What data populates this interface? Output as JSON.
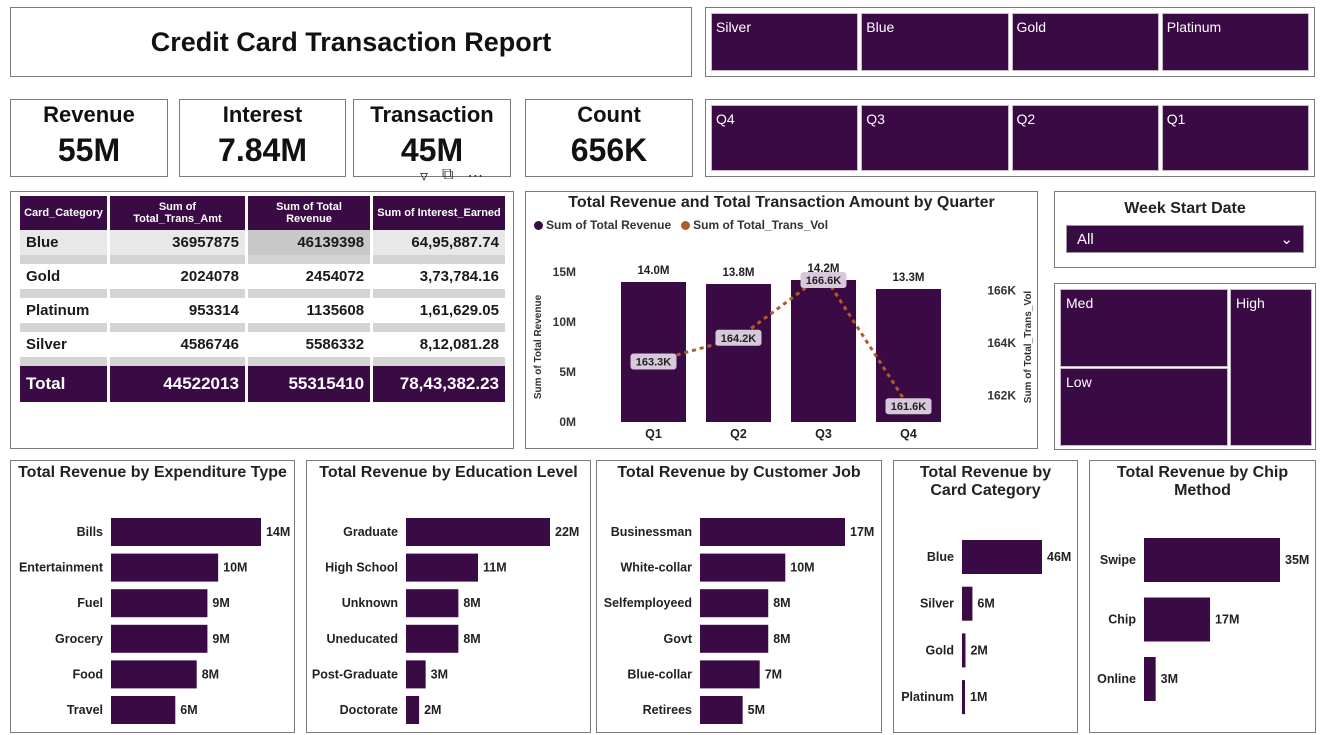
{
  "header": {
    "title": "Credit Card Transaction Report"
  },
  "card_slicer": [
    "Silver",
    "Blue",
    "Gold",
    "Platinum"
  ],
  "quarter_slicer": [
    "Q4",
    "Q3",
    "Q2",
    "Q1"
  ],
  "kpis": [
    {
      "label": "Revenue",
      "value": "55M"
    },
    {
      "label": "Interest",
      "value": "7.84M"
    },
    {
      "label": "Transaction",
      "value": "45M"
    },
    {
      "label": "Count",
      "value": "656K"
    }
  ],
  "matrix": {
    "headers": [
      "Card_Category",
      "Sum of Total_Trans_Amt",
      "Sum of Total Revenue",
      "Sum of Interest_Earned"
    ],
    "rows": [
      [
        "Blue",
        "36957875",
        "46139398",
        "64,95,887.74"
      ],
      [
        "Gold",
        "2024078",
        "2454072",
        "3,73,784.16"
      ],
      [
        "Platinum",
        "953314",
        "1135608",
        "1,61,629.05"
      ],
      [
        "Silver",
        "4586746",
        "5586332",
        "8,12,081.28"
      ]
    ],
    "total": [
      "Total",
      "44522013",
      "55315410",
      "78,43,382.23"
    ]
  },
  "week": {
    "title": "Week Start Date",
    "value": "All"
  },
  "segment_tree": {
    "med": "Med",
    "high": "High",
    "low": "Low"
  },
  "colors": {
    "primary": "#3a0a45",
    "line": "#b05a2a",
    "text": "#222222"
  },
  "chart_data": [
    {
      "type": "bar",
      "title": "Total Revenue and Total Transaction Amount by Quarter",
      "categories": [
        "Q1",
        "Q2",
        "Q3",
        "Q4"
      ],
      "series": [
        {
          "name": "Sum of Total Revenue",
          "values": [
            14.0,
            13.8,
            14.2,
            13.3
          ],
          "labels": [
            "14.0M",
            "13.8M",
            "14.2M",
            "13.3M"
          ]
        },
        {
          "name": "Sum of Total_Trans_Vol",
          "values": [
            163.3,
            164.2,
            166.6,
            161.6
          ],
          "labels": [
            "163.3K",
            "164.2K",
            "166.6K",
            "161.6K"
          ]
        }
      ],
      "ylabel": "Sum of Total Revenue",
      "y2label": "Sum of Total_Trans_Vol",
      "yticks": [
        "0M",
        "5M",
        "10M",
        "15M"
      ],
      "y2ticks": [
        "162K",
        "164K",
        "166K"
      ],
      "ylim": [
        0,
        15
      ],
      "y2lim": [
        161,
        166.7
      ]
    },
    {
      "type": "bar",
      "title": "Total Revenue by Expenditure Type",
      "categories": [
        "Bills",
        "Entertainment",
        "Fuel",
        "Grocery",
        "Food",
        "Travel"
      ],
      "values": [
        14,
        10,
        9,
        9,
        8,
        6
      ],
      "labels": [
        "14M",
        "10M",
        "9M",
        "9M",
        "8M",
        "6M"
      ]
    },
    {
      "type": "bar",
      "title": "Total Revenue by Education Level",
      "categories": [
        "Graduate",
        "High School",
        "Unknown",
        "Uneducated",
        "Post-Graduate",
        "Doctorate"
      ],
      "values": [
        22,
        11,
        8,
        8,
        3,
        2
      ],
      "labels": [
        "22M",
        "11M",
        "8M",
        "8M",
        "3M",
        "2M"
      ]
    },
    {
      "type": "bar",
      "title": "Total Revenue by Customer Job",
      "categories": [
        "Businessman",
        "White-collar",
        "Selfemployeed",
        "Govt",
        "Blue-collar",
        "Retirees"
      ],
      "values": [
        17,
        10,
        8,
        8,
        7,
        5
      ],
      "labels": [
        "17M",
        "10M",
        "8M",
        "8M",
        "7M",
        "5M"
      ]
    },
    {
      "type": "bar",
      "title": "Total Revenue by Card Category",
      "categories": [
        "Blue",
        "Silver",
        "Gold",
        "Platinum"
      ],
      "values": [
        46,
        6,
        2,
        1
      ],
      "labels": [
        "46M",
        "6M",
        "2M",
        "1M"
      ]
    },
    {
      "type": "bar",
      "title": "Total Revenue by Chip Method",
      "categories": [
        "Swipe",
        "Chip",
        "Online"
      ],
      "values": [
        35,
        17,
        3
      ],
      "labels": [
        "35M",
        "17M",
        "3M"
      ]
    }
  ]
}
